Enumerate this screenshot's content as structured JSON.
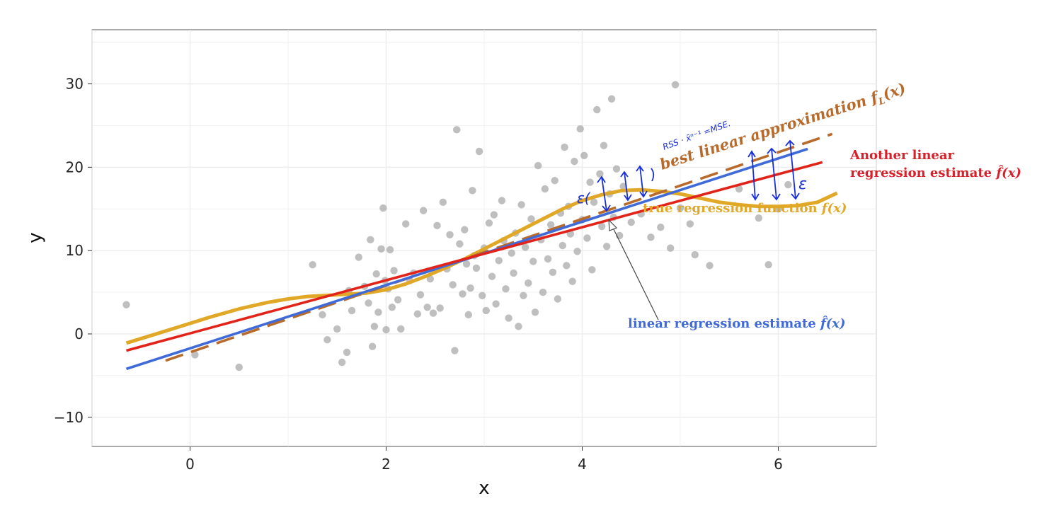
{
  "chart_data": {
    "type": "scatter",
    "xlabel": "x",
    "ylabel": "y",
    "xlim": [
      -1.0,
      7.0
    ],
    "ylim": [
      -13.5,
      36.5
    ],
    "x_ticks": [
      0,
      2,
      4,
      6
    ],
    "y_ticks": [
      -10,
      0,
      10,
      20,
      30
    ],
    "x_tick_labels": [
      "0",
      "2",
      "4",
      "6"
    ],
    "y_tick_labels": [
      "−10",
      "0",
      "10",
      "20",
      "30"
    ],
    "grid": true,
    "points": [
      [
        -0.65,
        3.5
      ],
      [
        0.05,
        -2.5
      ],
      [
        0.5,
        -4.0
      ],
      [
        1.25,
        8.3
      ],
      [
        1.35,
        2.3
      ],
      [
        1.4,
        -0.7
      ],
      [
        1.5,
        0.6
      ],
      [
        1.55,
        -3.4
      ],
      [
        1.6,
        -2.2
      ],
      [
        1.62,
        5.2
      ],
      [
        1.65,
        2.8
      ],
      [
        1.72,
        9.2
      ],
      [
        1.78,
        5.7
      ],
      [
        1.82,
        3.7
      ],
      [
        1.84,
        11.3
      ],
      [
        1.86,
        -1.5
      ],
      [
        1.88,
        0.9
      ],
      [
        1.9,
        7.2
      ],
      [
        1.92,
        2.6
      ],
      [
        1.95,
        10.2
      ],
      [
        1.97,
        15.1
      ],
      [
        1.99,
        6.4
      ],
      [
        2.0,
        0.5
      ],
      [
        2.02,
        5.4
      ],
      [
        2.04,
        10.1
      ],
      [
        2.06,
        3.2
      ],
      [
        2.08,
        7.6
      ],
      [
        2.12,
        4.1
      ],
      [
        2.15,
        0.6
      ],
      [
        2.2,
        13.2
      ],
      [
        2.24,
        6.4
      ],
      [
        2.28,
        7.3
      ],
      [
        2.32,
        2.4
      ],
      [
        2.35,
        4.7
      ],
      [
        2.38,
        14.8
      ],
      [
        2.42,
        3.2
      ],
      [
        2.45,
        6.6
      ],
      [
        2.48,
        2.5
      ],
      [
        2.52,
        13.0
      ],
      [
        2.55,
        3.1
      ],
      [
        2.58,
        15.8
      ],
      [
        2.62,
        7.8
      ],
      [
        2.65,
        11.9
      ],
      [
        2.68,
        5.9
      ],
      [
        2.7,
        -2.0
      ],
      [
        2.72,
        24.5
      ],
      [
        2.75,
        10.8
      ],
      [
        2.78,
        4.8
      ],
      [
        2.8,
        12.5
      ],
      [
        2.82,
        8.4
      ],
      [
        2.84,
        2.3
      ],
      [
        2.86,
        5.5
      ],
      [
        2.88,
        17.2
      ],
      [
        2.9,
        9.4
      ],
      [
        2.92,
        7.9
      ],
      [
        2.95,
        21.9
      ],
      [
        2.98,
        4.6
      ],
      [
        3.0,
        10.3
      ],
      [
        3.02,
        2.8
      ],
      [
        3.05,
        13.3
      ],
      [
        3.08,
        6.9
      ],
      [
        3.1,
        14.3
      ],
      [
        3.12,
        3.6
      ],
      [
        3.15,
        8.8
      ],
      [
        3.18,
        16.0
      ],
      [
        3.2,
        11.2
      ],
      [
        3.22,
        5.4
      ],
      [
        3.25,
        1.9
      ],
      [
        3.28,
        9.7
      ],
      [
        3.3,
        7.3
      ],
      [
        3.32,
        12.1
      ],
      [
        3.35,
        0.9
      ],
      [
        3.38,
        15.5
      ],
      [
        3.4,
        4.6
      ],
      [
        3.42,
        10.4
      ],
      [
        3.45,
        6.1
      ],
      [
        3.48,
        13.8
      ],
      [
        3.5,
        8.7
      ],
      [
        3.52,
        2.6
      ],
      [
        3.55,
        20.2
      ],
      [
        3.58,
        11.3
      ],
      [
        3.6,
        5.0
      ],
      [
        3.62,
        17.4
      ],
      [
        3.65,
        9.0
      ],
      [
        3.68,
        13.1
      ],
      [
        3.7,
        7.4
      ],
      [
        3.72,
        18.4
      ],
      [
        3.75,
        4.2
      ],
      [
        3.78,
        14.5
      ],
      [
        3.8,
        10.6
      ],
      [
        3.82,
        22.4
      ],
      [
        3.84,
        8.2
      ],
      [
        3.86,
        15.3
      ],
      [
        3.88,
        12.0
      ],
      [
        3.9,
        6.3
      ],
      [
        3.92,
        20.7
      ],
      [
        3.95,
        9.9
      ],
      [
        3.98,
        24.6
      ],
      [
        4.0,
        13.7
      ],
      [
        4.02,
        21.4
      ],
      [
        4.05,
        11.5
      ],
      [
        4.08,
        18.2
      ],
      [
        4.1,
        7.7
      ],
      [
        4.12,
        15.8
      ],
      [
        4.15,
        26.9
      ],
      [
        4.18,
        19.2
      ],
      [
        4.2,
        12.9
      ],
      [
        4.22,
        22.6
      ],
      [
        4.25,
        10.5
      ],
      [
        4.28,
        16.8
      ],
      [
        4.3,
        28.2
      ],
      [
        4.32,
        14.0
      ],
      [
        4.35,
        19.8
      ],
      [
        4.38,
        11.8
      ],
      [
        4.42,
        17.7
      ],
      [
        4.5,
        13.4
      ],
      [
        4.6,
        14.4
      ],
      [
        4.7,
        11.6
      ],
      [
        4.8,
        12.8
      ],
      [
        4.9,
        10.3
      ],
      [
        4.95,
        29.9
      ],
      [
        5.0,
        15.1
      ],
      [
        5.1,
        13.2
      ],
      [
        5.15,
        9.5
      ],
      [
        5.3,
        8.2
      ],
      [
        5.6,
        17.4
      ],
      [
        5.8,
        13.9
      ],
      [
        5.9,
        8.3
      ],
      [
        6.0,
        15.0
      ],
      [
        6.1,
        17.9
      ]
    ],
    "series": [
      {
        "name": "true regression function f(x)",
        "color": "#e0a826",
        "style": "solid",
        "x": [
          -0.65,
          -0.4,
          -0.1,
          0.2,
          0.5,
          0.8,
          1.0,
          1.2,
          1.5,
          1.8,
          2.0,
          2.2,
          2.4,
          2.6,
          2.8,
          3.0,
          3.2,
          3.4,
          3.6,
          3.8,
          4.0,
          4.2,
          4.4,
          4.6,
          4.8,
          5.0,
          5.2,
          5.4,
          5.6,
          5.8,
          6.0,
          6.2,
          6.4,
          6.6
        ],
        "y": [
          -1.1,
          -0.2,
          0.9,
          2.0,
          3.0,
          3.8,
          4.2,
          4.5,
          4.7,
          4.9,
          5.3,
          6.0,
          6.9,
          7.9,
          9.0,
          10.2,
          11.4,
          12.6,
          13.8,
          15.0,
          16.0,
          16.7,
          17.2,
          17.3,
          17.1,
          16.8,
          16.3,
          15.8,
          15.5,
          15.3,
          15.3,
          15.4,
          15.8,
          16.9
        ]
      },
      {
        "name": "best linear approximation f_L(x)",
        "color": "#b86a2a",
        "style": "dashed",
        "x": [
          -0.25,
          6.55
        ],
        "y": [
          -3.2,
          24.0
        ]
      },
      {
        "name": "linear regression estimate f̂(x)",
        "color": "#3f6ad8",
        "style": "solid",
        "x": [
          -0.65,
          6.3
        ],
        "y": [
          -4.2,
          22.2
        ]
      },
      {
        "name": "Another linear regression estimate f̂(x)",
        "color": "#e2231a",
        "style": "solid",
        "x": [
          -0.65,
          6.45
        ],
        "y": [
          -2.0,
          20.6
        ]
      }
    ],
    "annotations": [
      {
        "text": "best linear approximation ",
        "math": "f",
        "sub": "L",
        "tail": "(x)",
        "color": "#b86a2a"
      },
      {
        "text": "true regression function ",
        "math": "f(x)",
        "color": "#e0a826"
      },
      {
        "text": "linear regression estimate ",
        "math": "f̂(x)",
        "color": "#3f6ad8"
      },
      {
        "text_line1": "Another linear",
        "text_line2": "regression estimate ",
        "math": "f̂(x)",
        "color": "#e2231a"
      }
    ],
    "handwritten": {
      "note": "RSS · x̄ⁿ⁻¹ =MSE.",
      "eps1": "ε(",
      "eps2": "ε"
    }
  }
}
